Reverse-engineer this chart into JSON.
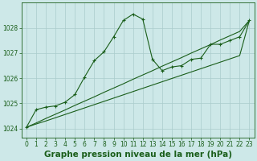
{
  "title": "Graphe pression niveau de la mer (hPa)",
  "background_color": "#cde8e8",
  "line_color": "#1a5e1a",
  "grid_color": "#aacccc",
  "xlim": [
    -0.5,
    23.5
  ],
  "ylim": [
    1023.65,
    1029.0
  ],
  "yticks": [
    1024,
    1025,
    1026,
    1027,
    1028
  ],
  "xticks": [
    0,
    1,
    2,
    3,
    4,
    5,
    6,
    7,
    8,
    9,
    10,
    11,
    12,
    13,
    14,
    15,
    16,
    17,
    18,
    19,
    20,
    21,
    22,
    23
  ],
  "series1_x": [
    0,
    1,
    2,
    3,
    4,
    5,
    6,
    7,
    8,
    9,
    10,
    11,
    12,
    13,
    14,
    15,
    16,
    17,
    18,
    19,
    20,
    21,
    22,
    23
  ],
  "series1_y": [
    1024.05,
    1024.75,
    1024.85,
    1024.9,
    1025.05,
    1025.35,
    1026.05,
    1026.7,
    1027.05,
    1027.65,
    1028.3,
    1028.55,
    1028.35,
    1026.75,
    1026.3,
    1026.45,
    1026.5,
    1026.75,
    1026.8,
    1027.35,
    1027.35,
    1027.5,
    1027.65,
    1028.3
  ],
  "series2_x": [
    0,
    1,
    2,
    3,
    4,
    5,
    6,
    7,
    8,
    9,
    10,
    11,
    12,
    13,
    14,
    15,
    16,
    17,
    18,
    19,
    20,
    21,
    22,
    23
  ],
  "series2_y": [
    1024.05,
    1024.18,
    1024.3,
    1024.43,
    1024.56,
    1024.69,
    1024.82,
    1024.95,
    1025.08,
    1025.21,
    1025.34,
    1025.47,
    1025.6,
    1025.73,
    1025.86,
    1025.99,
    1026.12,
    1026.25,
    1026.38,
    1026.51,
    1026.64,
    1026.77,
    1026.9,
    1028.3
  ],
  "series3_x": [
    0,
    1,
    2,
    3,
    4,
    5,
    6,
    7,
    8,
    9,
    10,
    11,
    12,
    13,
    14,
    15,
    16,
    17,
    18,
    19,
    20,
    21,
    22,
    23
  ],
  "series3_y": [
    1024.05,
    1024.22,
    1024.4,
    1024.57,
    1024.74,
    1024.92,
    1025.09,
    1025.26,
    1025.44,
    1025.61,
    1025.78,
    1025.96,
    1026.13,
    1026.3,
    1026.48,
    1026.65,
    1026.82,
    1027.0,
    1027.17,
    1027.34,
    1027.52,
    1027.69,
    1027.86,
    1028.3
  ],
  "title_fontsize": 7.5,
  "tick_fontsize": 5.5
}
